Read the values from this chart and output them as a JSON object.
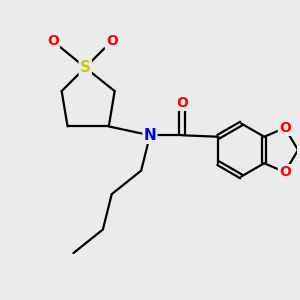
{
  "background_color": "#ebebeb",
  "atom_colors": {
    "S": "#cccc00",
    "O": "#ff0000",
    "N": "#0000ee",
    "C": "#000000"
  },
  "bond_color": "#000000",
  "bond_width": 1.6,
  "font_size_atoms": 10,
  "figsize": [
    3.0,
    3.0
  ],
  "dpi": 100
}
